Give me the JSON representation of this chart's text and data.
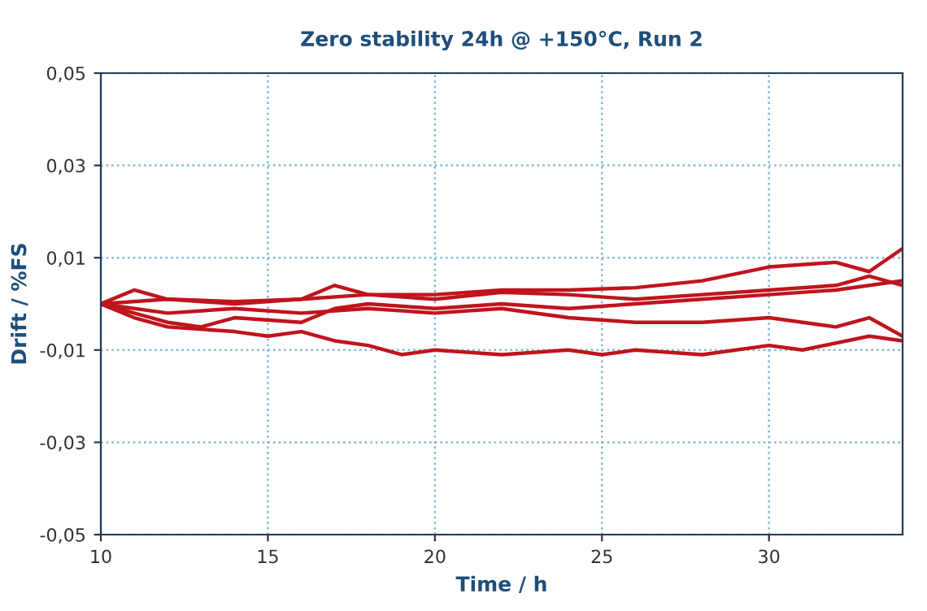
{
  "chart_data": {
    "type": "line",
    "title": "Zero stability 24h @ +150°C, Run 2",
    "xlabel": "Time / h",
    "ylabel": "Drift / %FS",
    "xlim": [
      10,
      34
    ],
    "xticks": [
      10,
      15,
      20,
      25,
      30
    ],
    "ylim": [
      -0.05,
      0.05
    ],
    "yticks": [
      {
        "value": -0.05,
        "label": "-0,05"
      },
      {
        "value": -0.03,
        "label": "-0,03"
      },
      {
        "value": -0.01,
        "label": "-0,01"
      },
      {
        "value": 0.01,
        "label": "0,01"
      },
      {
        "value": 0.03,
        "label": "0,03"
      },
      {
        "value": 0.05,
        "label": "0,05"
      }
    ],
    "grid": true,
    "line_style": "solid",
    "marker": "none",
    "series": [
      {
        "color": "#c0141c",
        "x": [
          10,
          12,
          14,
          16,
          18,
          20,
          22,
          24,
          26,
          28,
          30,
          32,
          33,
          34
        ],
        "values": [
          0,
          0.001,
          0.0005,
          0.001,
          0.002,
          0.002,
          0.003,
          0.003,
          0.0035,
          0.005,
          0.008,
          0.009,
          0.007,
          0.012
        ]
      },
      {
        "color": "#c0141c",
        "x": [
          10,
          11,
          12,
          14,
          15,
          16,
          17,
          18,
          19,
          20,
          22,
          24,
          25,
          26,
          28,
          30,
          31,
          33,
          34
        ],
        "values": [
          0,
          -0.003,
          -0.005,
          -0.006,
          -0.007,
          -0.006,
          -0.008,
          -0.009,
          -0.011,
          -0.01,
          -0.011,
          -0.01,
          -0.011,
          -0.01,
          -0.011,
          -0.009,
          -0.01,
          -0.007,
          -0.008
        ]
      },
      {
        "color": "#c0141c",
        "x": [
          10,
          11,
          12,
          14,
          16,
          17,
          18,
          20,
          22,
          24,
          26,
          28,
          30,
          32,
          33,
          34
        ],
        "values": [
          0,
          0.003,
          0.001,
          0,
          0.001,
          0.004,
          0.002,
          0.001,
          0.0025,
          0.002,
          0.001,
          0.002,
          0.003,
          0.004,
          0.006,
          0.004
        ]
      },
      {
        "color": "#c0141c",
        "x": [
          10,
          12,
          14,
          16,
          18,
          20,
          22,
          24,
          26,
          28,
          30,
          32,
          33,
          34
        ],
        "values": [
          0,
          -0.002,
          -0.001,
          -0.002,
          -0.001,
          -0.002,
          -0.001,
          -0.003,
          -0.004,
          -0.004,
          -0.003,
          -0.005,
          -0.003,
          -0.007
        ]
      },
      {
        "color": "#c0141c",
        "x": [
          10,
          11,
          12,
          13,
          14,
          16,
          17,
          18,
          20,
          22,
          24,
          26,
          28,
          30,
          32,
          34
        ],
        "values": [
          0,
          -0.002,
          -0.004,
          -0.005,
          -0.003,
          -0.004,
          -0.001,
          0,
          -0.001,
          0,
          -0.001,
          0,
          0.001,
          0.002,
          0.003,
          0.005
        ]
      }
    ]
  }
}
